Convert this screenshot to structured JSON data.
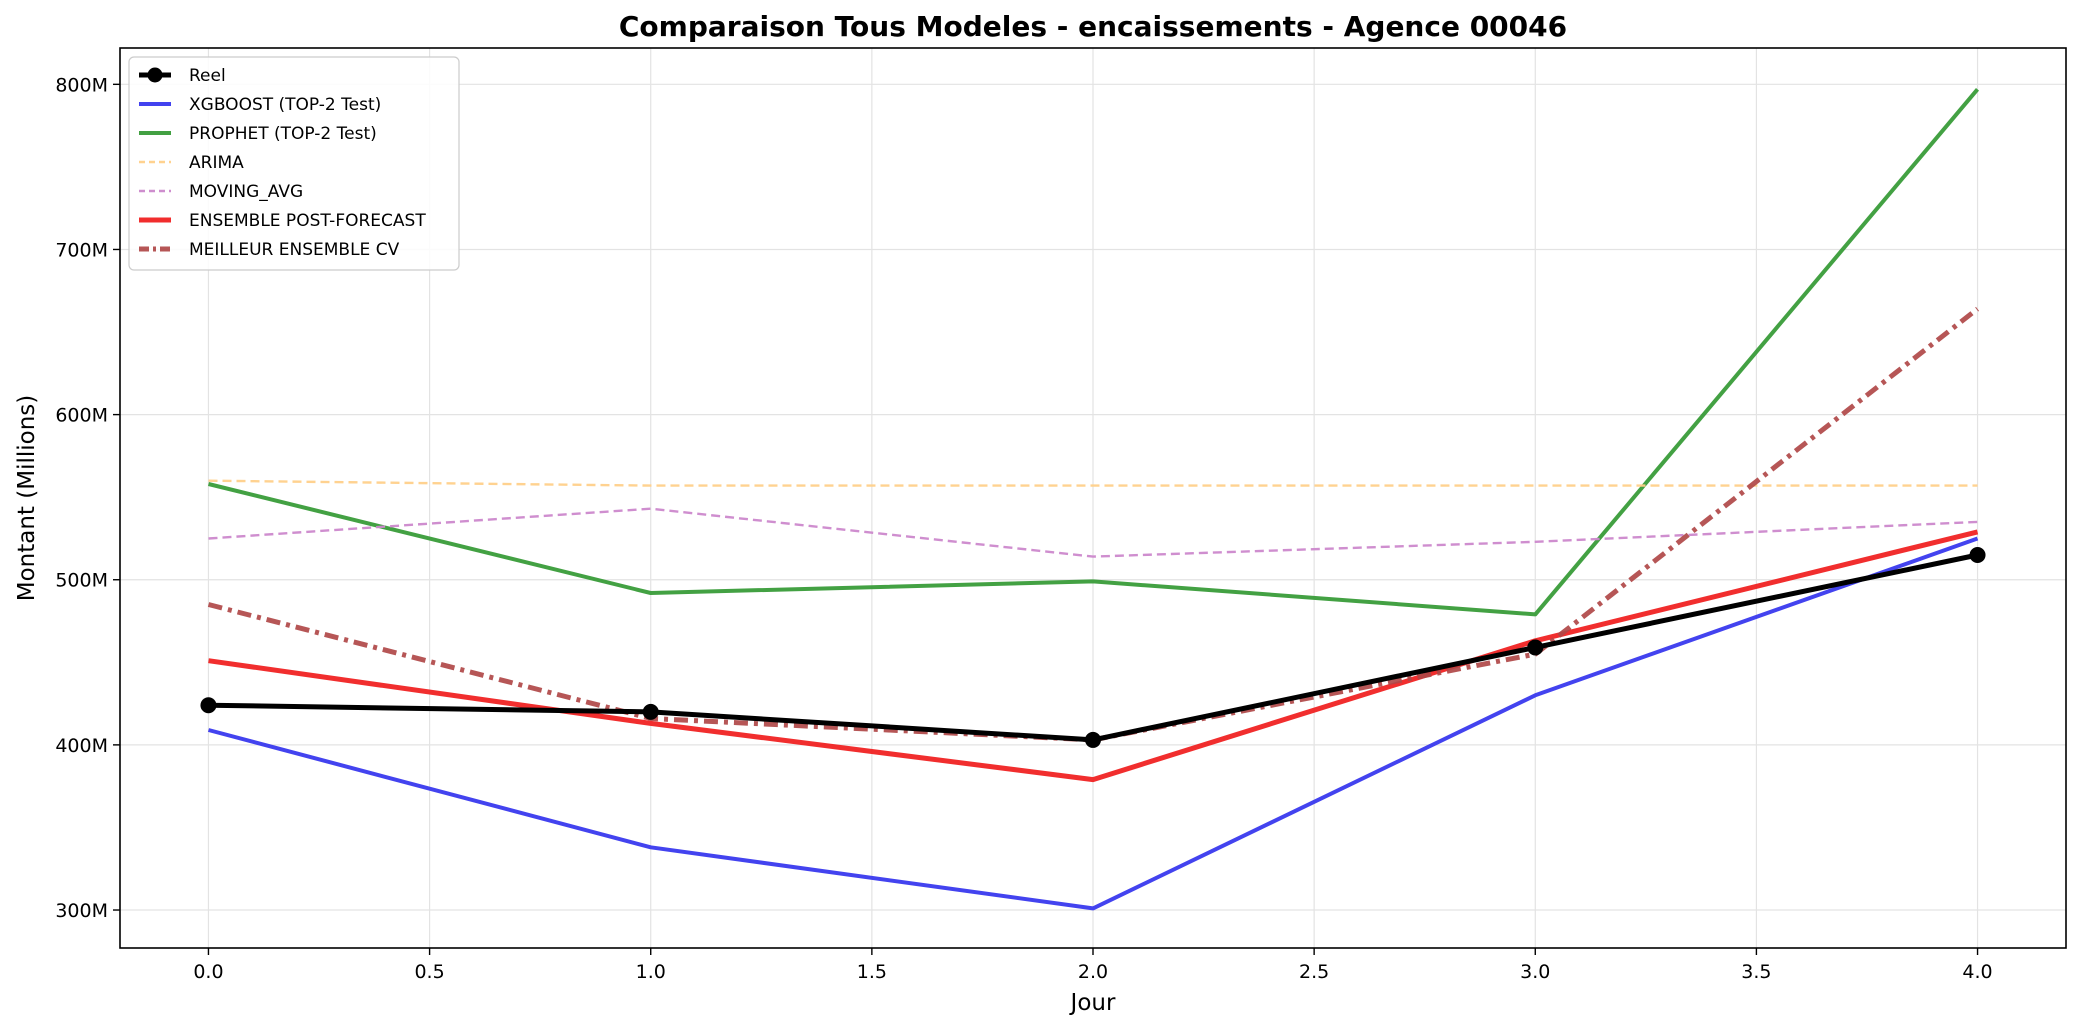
{
  "chart_data": {
    "type": "line",
    "title": "Comparaison Tous Modeles - encaissements - Agence 00046",
    "xlabel": "Jour",
    "ylabel": "Montant (Millions)",
    "x": [
      0,
      1,
      2,
      3,
      4
    ],
    "xlim": [
      -0.2,
      4.2
    ],
    "ylim": [
      277,
      822
    ],
    "x_ticks": [
      0.0,
      0.5,
      1.0,
      1.5,
      2.0,
      2.5,
      3.0,
      3.5,
      4.0
    ],
    "x_tick_labels": [
      "0.0",
      "0.5",
      "1.0",
      "1.5",
      "2.0",
      "2.5",
      "3.0",
      "3.5",
      "4.0"
    ],
    "y_ticks": [
      300,
      400,
      500,
      600,
      700,
      800
    ],
    "y_tick_labels": [
      "300M",
      "400M",
      "500M",
      "600M",
      "700M",
      "800M"
    ],
    "grid": true,
    "legend_position": "top-left",
    "series": [
      {
        "name": "Reel",
        "values": [
          424,
          420,
          403,
          459,
          515
        ],
        "color": "#000000",
        "dash": "solid",
        "marker": "circle",
        "width": "thick"
      },
      {
        "name": "XGBOOST (TOP-2 Test)",
        "values": [
          409,
          338,
          301,
          430,
          525
        ],
        "color": "#3333ee",
        "dash": "solid",
        "marker": "none",
        "width": "medium"
      },
      {
        "name": "PROPHET (TOP-2 Test)",
        "values": [
          558,
          492,
          499,
          479,
          797
        ],
        "color": "#339933",
        "dash": "solid",
        "marker": "none",
        "width": "medium"
      },
      {
        "name": "ARIMA",
        "values": [
          560,
          557,
          557,
          557,
          557
        ],
        "color": "#ffd08a",
        "dash": "dashed",
        "marker": "none",
        "width": "thin"
      },
      {
        "name": "MOVING_AVG",
        "values": [
          525,
          543,
          514,
          523,
          535
        ],
        "color": "#cc88cc",
        "dash": "dashed",
        "marker": "none",
        "width": "thin"
      },
      {
        "name": "ENSEMBLE POST-FORECAST",
        "values": [
          451,
          413,
          379,
          463,
          529
        ],
        "color": "#f01c1c",
        "dash": "solid",
        "marker": "none",
        "width": "thick"
      },
      {
        "name": "MEILLEUR ENSEMBLE CV",
        "values": [
          485,
          416,
          403,
          455,
          664
        ],
        "color": "#b04848",
        "dash": "dashdot",
        "marker": "none",
        "width": "thick"
      }
    ]
  }
}
